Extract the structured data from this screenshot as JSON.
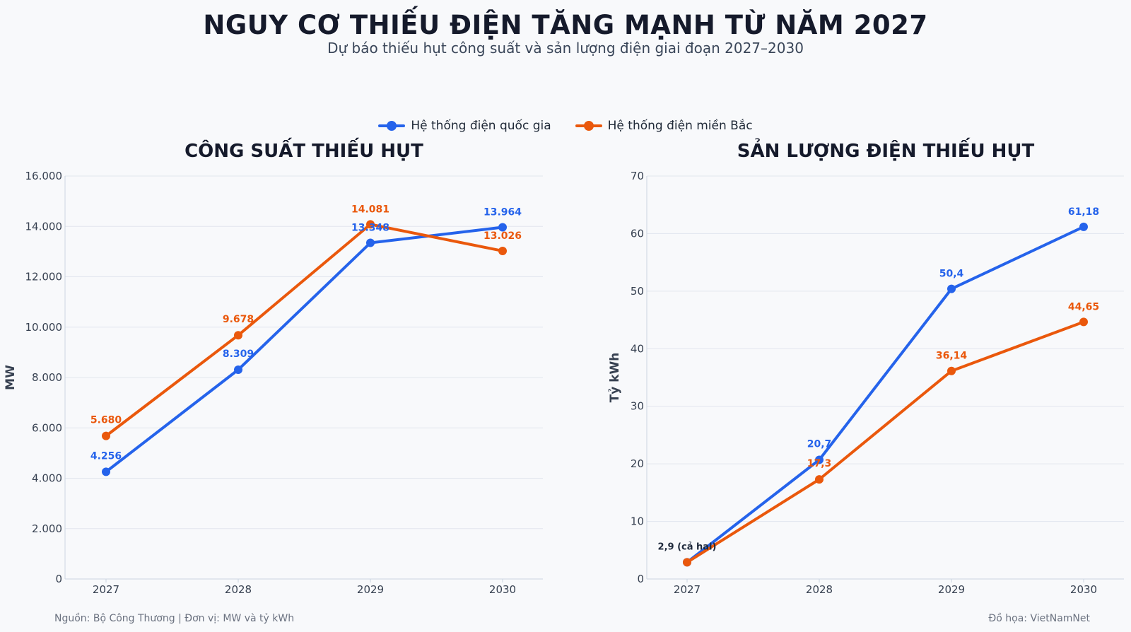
{
  "header": {
    "title": "NGUY CƠ THIẾU ĐIỆN TĂNG MẠNH TỪ NĂM 2027",
    "subtitle": "Dự báo thiếu hụt công suất và sản lượng điện giai đoạn 2027–2030"
  },
  "legend": [
    {
      "name": "Hệ thống điện quốc gia",
      "color": "#2563eb"
    },
    {
      "name": "Hệ thống điện miền Bắc",
      "color": "#ea580c"
    }
  ],
  "footer": {
    "source": "Nguồn: Bộ Công Thương  |  Đơn vị: MW và tỷ kWh",
    "credit": "Đồ họa: VietNamNet"
  },
  "chart_data": [
    {
      "type": "line",
      "title": "CÔNG SUẤT THIẾU HỤT",
      "xlabel": "",
      "ylabel": "MW",
      "categories": [
        "2027",
        "2028",
        "2029",
        "2030"
      ],
      "ylim": [
        0,
        16000
      ],
      "yticks": [
        "0",
        "2.000",
        "4.000",
        "6.000",
        "8.000",
        "10.000",
        "12.000",
        "14.000",
        "16.000"
      ],
      "grid": true,
      "series": [
        {
          "name": "Hệ thống điện quốc gia",
          "color": "#2563eb",
          "values": [
            4256,
            8309,
            13348,
            13964
          ],
          "labels": [
            "4.256",
            "8.309",
            "13.348",
            "13.964"
          ]
        },
        {
          "name": "Hệ thống điện miền Bắc",
          "color": "#ea580c",
          "values": [
            5680,
            9678,
            14081,
            13026
          ],
          "labels": [
            "5.680",
            "9.678",
            "14.081",
            "13.026"
          ]
        }
      ]
    },
    {
      "type": "line",
      "title": "SẢN LƯỢNG ĐIỆN THIẾU HỤT",
      "xlabel": "",
      "ylabel": "Tỷ kWh",
      "categories": [
        "2027",
        "2028",
        "2029",
        "2030"
      ],
      "ylim": [
        0,
        70
      ],
      "yticks": [
        "0",
        "10",
        "20",
        "30",
        "40",
        "50",
        "60",
        "70"
      ],
      "grid": true,
      "series": [
        {
          "name": "Hệ thống điện quốc gia",
          "color": "#2563eb",
          "values": [
            2.9,
            20.7,
            50.4,
            61.18
          ],
          "labels": [
            "",
            "20,7",
            "50,4",
            "61,18"
          ]
        },
        {
          "name": "Hệ thống điện miền Bắc",
          "color": "#ea580c",
          "values": [
            2.9,
            17.3,
            36.14,
            44.65
          ],
          "labels": [
            "",
            "17,3",
            "36,14",
            "44,65"
          ]
        }
      ],
      "annotation": {
        "text": "2,9 (cả hai)",
        "color": "#1e293b"
      }
    }
  ]
}
